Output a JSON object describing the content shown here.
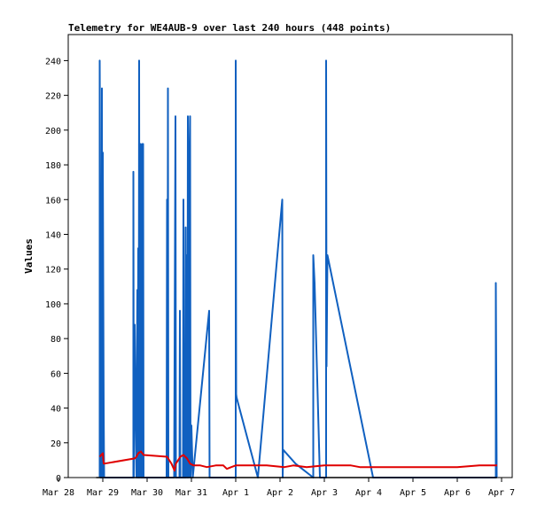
{
  "chart_data": {
    "type": "line",
    "title": "Telemetry for WE4AUB-9 over last 240 hours (448 points)",
    "xlabel": "",
    "ylabel": "Values",
    "x_tick_labels": [
      "Mar 28",
      "Mar 29",
      "Mar 30",
      "Mar 31",
      "Apr 1",
      "Apr 2",
      "Apr 3",
      "Apr 4",
      "Apr 5",
      "Apr 6",
      "Apr 7"
    ],
    "xlim_days": [
      0,
      10
    ],
    "ylim": [
      0,
      255
    ],
    "yticks": [
      0,
      20,
      40,
      60,
      80,
      100,
      120,
      140,
      160,
      180,
      200,
      220,
      240
    ],
    "grid": false,
    "legend": "none",
    "colors": {
      "series_a": "#1060c0",
      "series_b": "#e00000",
      "series_c": "#000000"
    },
    "series": [
      {
        "points": [
          [
            0.93,
            0
          ],
          [
            0.93,
            240
          ],
          [
            0.95,
            96
          ],
          [
            0.95,
            0
          ],
          [
            0.98,
            0
          ],
          [
            0.98,
            224
          ],
          [
            0.99,
            0
          ],
          [
            1.0,
            187
          ],
          [
            1.01,
            112
          ],
          [
            1.02,
            40
          ],
          [
            1.03,
            0
          ],
          [
            1.69,
            0
          ],
          [
            1.69,
            176
          ],
          [
            1.7,
            0
          ],
          [
            1.72,
            88
          ],
          [
            1.74,
            40
          ],
          [
            1.76,
            0
          ],
          [
            1.77,
            60
          ],
          [
            1.78,
            108
          ],
          [
            1.79,
            0
          ],
          [
            1.8,
            132
          ],
          [
            1.81,
            0
          ],
          [
            1.82,
            240
          ],
          [
            1.83,
            0
          ],
          [
            1.84,
            96
          ],
          [
            1.85,
            192
          ],
          [
            1.86,
            0
          ],
          [
            1.88,
            0
          ],
          [
            1.89,
            192
          ],
          [
            1.9,
            0
          ],
          [
            1.91,
            192
          ],
          [
            1.92,
            0
          ],
          [
            2.44,
            0
          ],
          [
            2.45,
            160
          ],
          [
            2.46,
            0
          ],
          [
            2.47,
            224
          ],
          [
            2.48,
            0
          ],
          [
            2.6,
            0
          ],
          [
            2.61,
            0
          ],
          [
            2.64,
            208
          ],
          [
            2.65,
            0
          ],
          [
            2.73,
            0
          ],
          [
            2.74,
            96
          ],
          [
            2.75,
            0
          ],
          [
            2.81,
            0
          ],
          [
            2.82,
            160
          ],
          [
            2.83,
            0
          ],
          [
            2.86,
            0
          ],
          [
            2.87,
            144
          ],
          [
            2.88,
            0
          ],
          [
            2.9,
            128
          ],
          [
            2.91,
            0
          ],
          [
            2.92,
            208
          ],
          [
            2.93,
            20
          ],
          [
            2.94,
            0
          ],
          [
            2.96,
            192
          ],
          [
            2.97,
            208
          ],
          [
            2.98,
            0
          ],
          [
            3.0,
            30
          ],
          [
            3.02,
            10
          ],
          [
            3.03,
            0
          ],
          [
            3.4,
            96
          ],
          [
            3.41,
            0
          ],
          [
            4.0,
            0
          ],
          [
            4.0,
            240
          ],
          [
            4.01,
            48
          ],
          [
            4.02,
            46
          ],
          [
            4.5,
            0
          ],
          [
            5.05,
            160
          ],
          [
            5.06,
            0
          ],
          [
            5.07,
            16
          ],
          [
            5.35,
            8
          ],
          [
            5.75,
            0
          ],
          [
            5.75,
            128
          ],
          [
            5.78,
            112
          ],
          [
            5.9,
            0
          ],
          [
            6.04,
            0
          ],
          [
            6.04,
            240
          ],
          [
            6.05,
            64
          ],
          [
            6.07,
            128
          ],
          [
            7.1,
            0
          ],
          [
            9.87,
            0
          ],
          [
            9.87,
            112
          ],
          [
            9.88,
            56
          ],
          [
            9.89,
            0
          ]
        ]
      },
      {
        "points": [
          [
            0.93,
            12
          ],
          [
            1.0,
            14
          ],
          [
            1.02,
            8
          ],
          [
            1.03,
            8
          ],
          [
            1.72,
            11
          ],
          [
            1.76,
            12
          ],
          [
            1.8,
            14
          ],
          [
            1.86,
            15
          ],
          [
            1.89,
            14
          ],
          [
            1.92,
            13
          ],
          [
            2.45,
            12
          ],
          [
            2.55,
            8
          ],
          [
            2.62,
            4
          ],
          [
            2.65,
            8
          ],
          [
            2.75,
            12
          ],
          [
            2.82,
            13
          ],
          [
            2.9,
            11
          ],
          [
            2.97,
            8
          ],
          [
            3.05,
            7
          ],
          [
            3.2,
            7
          ],
          [
            3.35,
            6
          ],
          [
            3.55,
            7
          ],
          [
            3.72,
            7
          ],
          [
            3.8,
            5
          ],
          [
            3.9,
            6
          ],
          [
            4.0,
            7
          ],
          [
            4.3,
            7
          ],
          [
            4.7,
            7
          ],
          [
            5.1,
            6
          ],
          [
            5.3,
            7
          ],
          [
            5.6,
            6
          ],
          [
            6.0,
            7
          ],
          [
            6.6,
            7
          ],
          [
            6.8,
            6
          ],
          [
            7.2,
            6
          ],
          [
            7.6,
            6
          ],
          [
            8.0,
            6
          ],
          [
            8.5,
            6
          ],
          [
            9.0,
            6
          ],
          [
            9.5,
            7
          ],
          [
            9.9,
            7
          ]
        ]
      },
      {
        "points": [
          [
            0.85,
            0
          ],
          [
            9.9,
            0
          ]
        ]
      }
    ]
  }
}
